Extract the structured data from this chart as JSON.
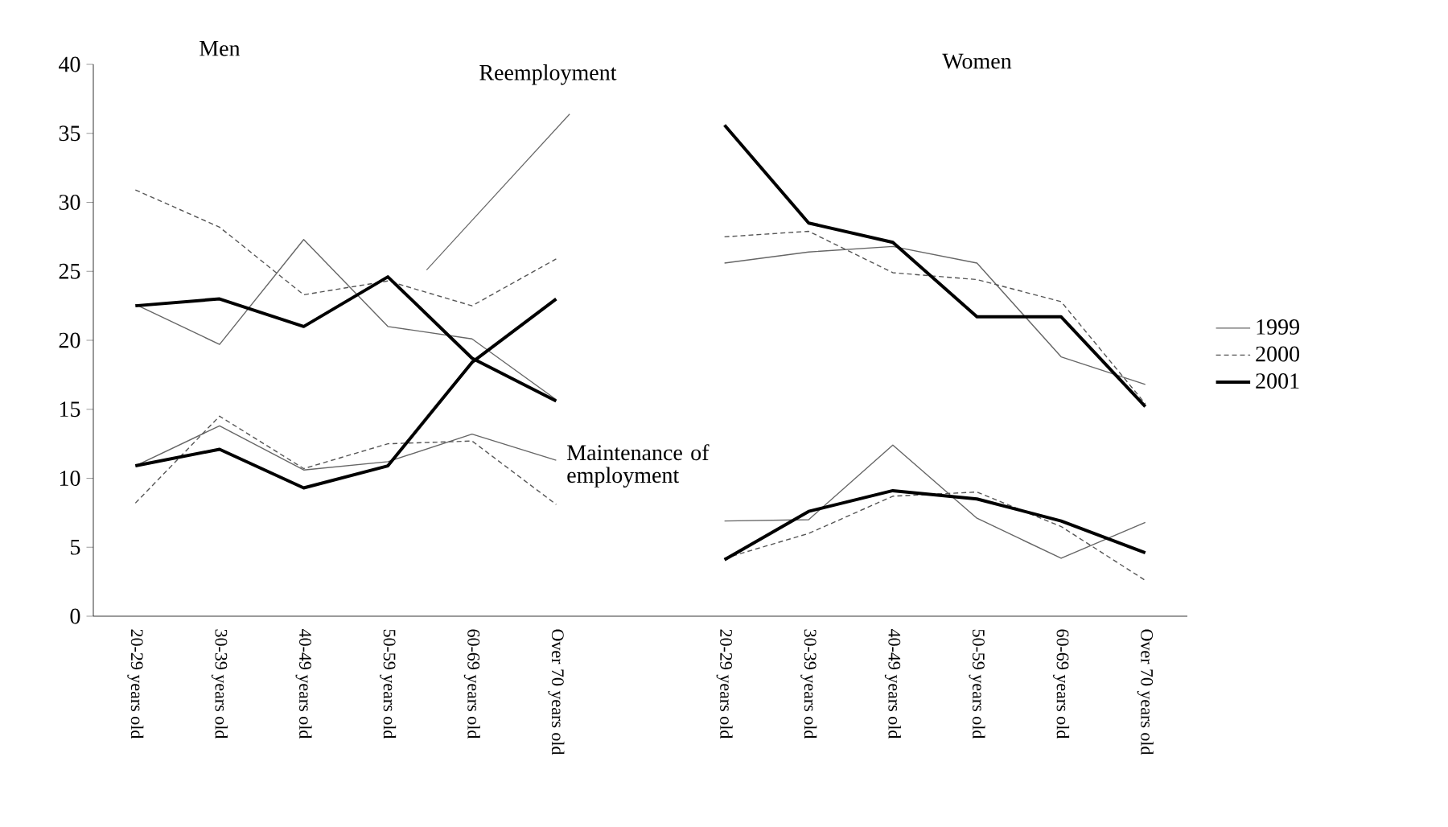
{
  "chart_data": {
    "type": "line",
    "categories": [
      "20-29 years old",
      "30-39 years old",
      "40-49 years old",
      "50-59 years old",
      "60-69 years old",
      "Over 70 years old",
      null,
      "20-29 years old",
      "30-39 years old",
      "40-49 years old",
      "50-59 years old",
      "60-69 years old",
      "Over 70 years old"
    ],
    "series": [
      {
        "name": "1999",
        "color": "#666666",
        "line_style": "solid",
        "values": [
          22.6,
          19.7,
          27.3,
          21.0,
          20.1,
          15.7,
          null,
          25.6,
          26.4,
          26.8,
          25.6,
          18.8,
          16.8
        ]
      },
      {
        "name": "2000",
        "color": "#555555",
        "line_style": "dashed",
        "values": [
          30.9,
          28.2,
          23.3,
          24.3,
          22.5,
          25.9,
          null,
          27.5,
          27.9,
          24.9,
          24.4,
          22.8,
          15.4
        ]
      },
      {
        "name": "2001",
        "color": "#000000",
        "line_style": "solid",
        "values": [
          22.5,
          23.0,
          21.0,
          24.6,
          18.7,
          15.6,
          null,
          35.6,
          28.5,
          27.1,
          21.7,
          21.7,
          15.2
        ]
      },
      {
        "color": "#666666",
        "line_style": "solid",
        "values": [
          10.9,
          13.8,
          10.6,
          11.2,
          13.2,
          11.3,
          null,
          6.9,
          7.0,
          12.4,
          7.1,
          4.2,
          6.8
        ]
      },
      {
        "color": "#555555",
        "line_style": "dashed",
        "values": [
          8.2,
          14.5,
          10.7,
          12.5,
          12.7,
          8.1,
          null,
          4.2,
          6.0,
          8.7,
          9.0,
          6.5,
          2.6
        ]
      },
      {
        "color": "#000000",
        "line_style": "solid",
        "values": [
          10.9,
          12.1,
          9.3,
          10.9,
          18.4,
          23.0,
          null,
          4.1,
          7.6,
          9.1,
          8.5,
          6.9,
          4.6
        ]
      }
    ],
    "ylim": [
      0,
      40
    ],
    "yticks": [
      0,
      5,
      10,
      15,
      20,
      25,
      30,
      35,
      40
    ],
    "annotations": [
      "Men",
      "Women",
      "Reemployment",
      "Maintenance of employment"
    ],
    "legend": "right",
    "grid": false,
    "marker": "none"
  }
}
